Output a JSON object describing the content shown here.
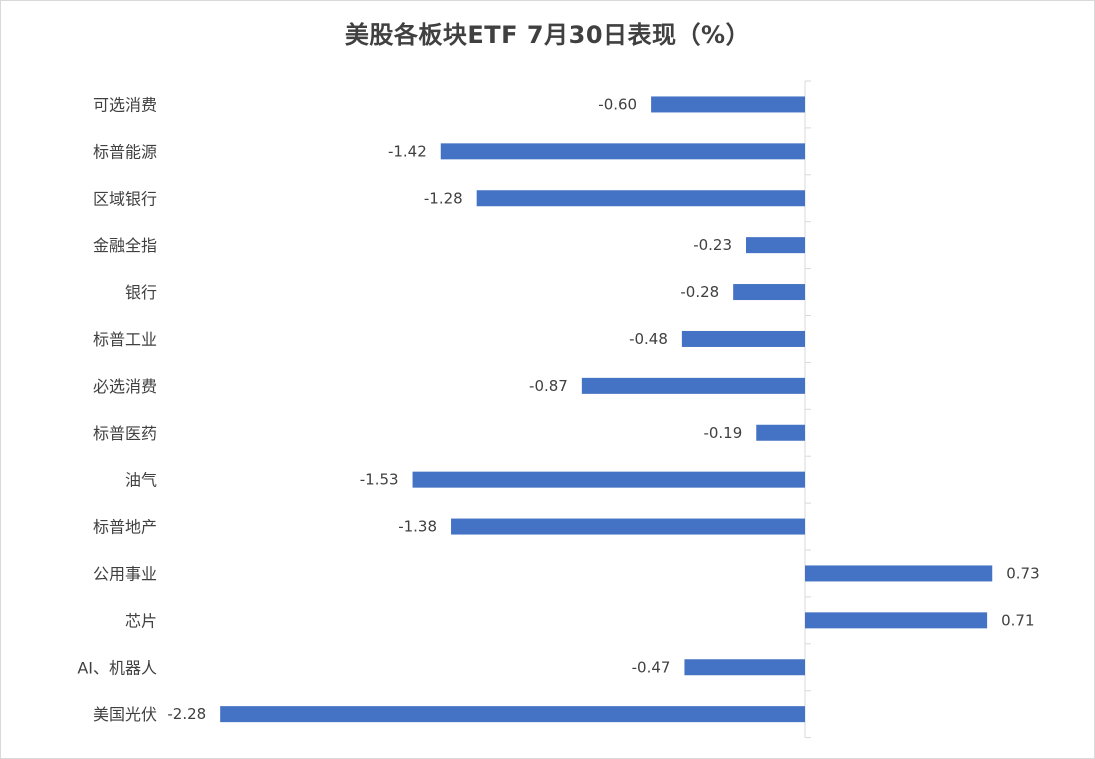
{
  "chart_data": {
    "type": "bar",
    "orientation": "horizontal",
    "title": "美股各板块ETF  7月30日表现（%）",
    "xlabel": "",
    "ylabel": "",
    "grid": false,
    "legend": "none",
    "bar_color": "#4472C4",
    "categories": [
      "可选消费",
      "标普能源",
      "区域银行",
      "金融全指",
      "银行",
      "标普工业",
      "必选消费",
      "标普医药",
      "油气",
      "标普地产",
      "公用事业",
      "芯片",
      "AI、机器人",
      "美国光伏"
    ],
    "values": [
      -0.6,
      -1.42,
      -1.28,
      -0.23,
      -0.28,
      -0.48,
      -0.87,
      -0.19,
      -1.53,
      -1.38,
      0.73,
      0.71,
      -0.47,
      -2.28
    ],
    "value_labels": [
      "-0.60",
      "-1.42",
      "-1.28",
      "-0.23",
      "-0.28",
      "-0.48",
      "-0.87",
      "-0.19",
      "-1.53",
      "-1.38",
      "0.73",
      "0.71",
      "-0.47",
      "-2.28"
    ]
  }
}
